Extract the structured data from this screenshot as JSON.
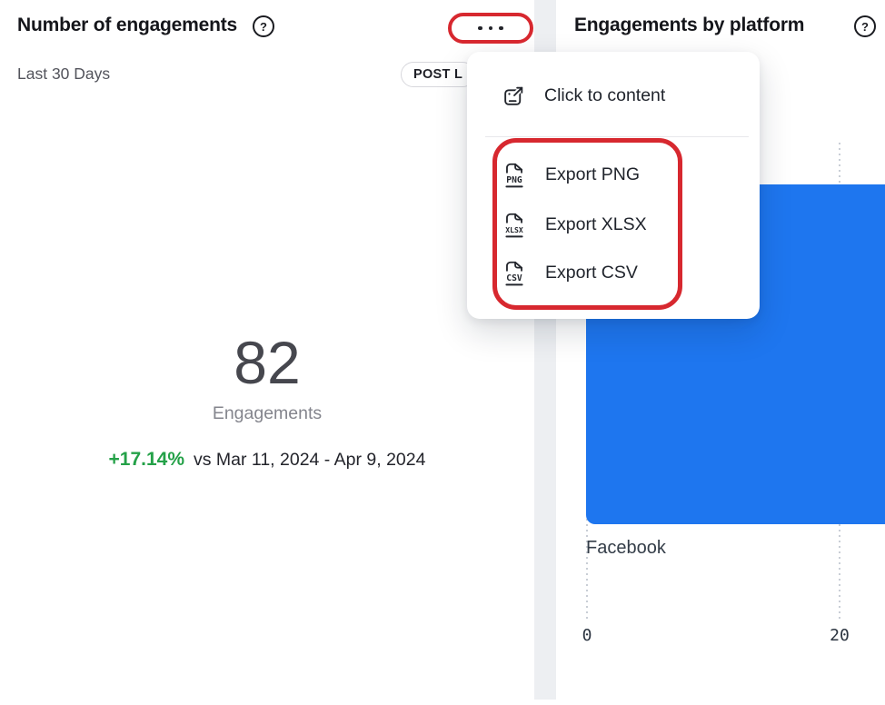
{
  "left_panel": {
    "title": "Number of engagements",
    "help_icon": "?",
    "date_range": "Last 30 Days",
    "badge_label": "POST L",
    "metric": {
      "value": "82",
      "label": "Engagements",
      "delta": "+17.14%",
      "delta_color": "#24A148",
      "comparison": "vs Mar 11, 2024 - Apr 9, 2024"
    }
  },
  "right_panel": {
    "title": "Engagements by platform",
    "help_icon": "?"
  },
  "dropdown_menu": {
    "items": [
      {
        "label": "Click to content",
        "icon": "open-content-icon"
      },
      {
        "label": "Export PNG",
        "icon": "file-png-icon",
        "file_type": "PNG"
      },
      {
        "label": "Export XLSX",
        "icon": "file-xlsx-icon",
        "file_type": "XLSX"
      },
      {
        "label": "Export CSV",
        "icon": "file-csv-icon",
        "file_type": "CSV"
      }
    ]
  },
  "annotations": {
    "color": "#D7282F",
    "highlighted": [
      "more-options-button",
      "export-menu-group"
    ]
  },
  "chart_data": {
    "type": "bar",
    "orientation": "horizontal",
    "title": "Engagements by platform",
    "categories": [
      "Facebook"
    ],
    "series": [
      {
        "name": "Engagements",
        "values": [
          24
        ]
      }
    ],
    "clipped": true,
    "x_ticks": [
      0,
      20
    ],
    "tick_labels": [
      "0",
      "20"
    ],
    "xlabel": "",
    "ylabel": "",
    "xlim_visible": [
      0,
      23.7
    ],
    "bar_color": "#1E76EF",
    "grid": "dotted-vertical"
  }
}
